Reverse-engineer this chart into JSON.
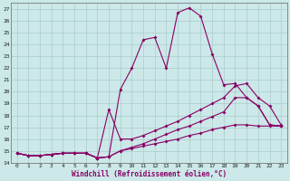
{
  "background_color": "#cce8e8",
  "grid_color": "#aacccc",
  "line_color": "#880066",
  "x_label": "Windchill (Refroidissement éolien,°C)",
  "ylim": [
    14,
    27.5
  ],
  "xlim": [
    -0.5,
    23.5
  ],
  "yticks": [
    14,
    15,
    16,
    17,
    18,
    19,
    20,
    21,
    22,
    23,
    24,
    25,
    26,
    27
  ],
  "xticks": [
    0,
    1,
    2,
    3,
    4,
    5,
    6,
    7,
    8,
    9,
    10,
    11,
    12,
    13,
    14,
    15,
    16,
    17,
    18,
    19,
    20,
    21,
    22,
    23
  ],
  "series": [
    [
      14.8,
      14.6,
      14.6,
      14.7,
      14.8,
      14.8,
      14.8,
      14.4,
      14.5,
      20.2,
      22.0,
      24.4,
      24.6,
      22.0,
      26.7,
      27.1,
      26.4,
      23.2,
      20.6,
      20.7,
      19.5,
      18.8,
      17.2,
      17.1
    ],
    [
      14.8,
      14.6,
      14.6,
      14.7,
      14.8,
      14.8,
      14.8,
      14.4,
      18.5,
      16.0,
      16.0,
      16.3,
      16.7,
      17.1,
      17.5,
      18.0,
      18.5,
      19.0,
      19.5,
      20.5,
      20.7,
      19.5,
      18.8,
      17.2
    ],
    [
      14.8,
      14.6,
      14.6,
      14.7,
      14.8,
      14.8,
      14.8,
      14.4,
      14.5,
      15.0,
      15.3,
      15.6,
      16.0,
      16.4,
      16.8,
      17.1,
      17.5,
      17.9,
      18.3,
      19.5,
      19.5,
      18.8,
      17.2,
      17.1
    ],
    [
      14.8,
      14.6,
      14.6,
      14.7,
      14.8,
      14.8,
      14.8,
      14.4,
      14.5,
      15.0,
      15.2,
      15.4,
      15.6,
      15.8,
      16.0,
      16.3,
      16.5,
      16.8,
      17.0,
      17.2,
      17.2,
      17.1,
      17.1,
      17.1
    ]
  ]
}
